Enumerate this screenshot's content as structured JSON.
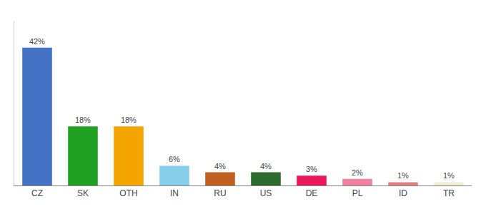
{
  "chart_data": {
    "type": "bar",
    "categories": [
      "CZ",
      "SK",
      "OTH",
      "IN",
      "RU",
      "US",
      "DE",
      "PL",
      "ID",
      "TR"
    ],
    "values": [
      42,
      18,
      18,
      6,
      4,
      4,
      3,
      2,
      1,
      1
    ],
    "value_labels": [
      "42%",
      "18%",
      "18%",
      "6%",
      "4%",
      "4%",
      "3%",
      "2%",
      "1%",
      "1%"
    ],
    "colors": [
      "#4472c4",
      "#21a121",
      "#f5a500",
      "#87ceeb",
      "#c06020",
      "#2e6b2e",
      "#e8185a",
      "#f080a0",
      "#e08080",
      "#f0eecc"
    ],
    "ylim": [
      0,
      50
    ],
    "grid": false,
    "data_labels": true,
    "tick_labels": "x"
  }
}
